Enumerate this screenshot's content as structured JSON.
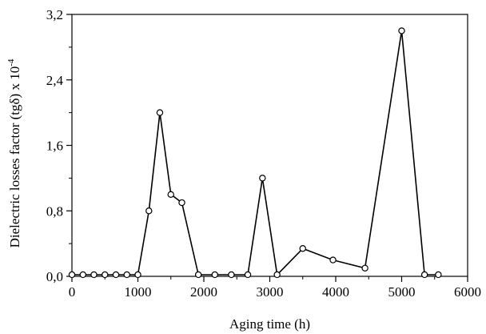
{
  "chart_data": {
    "type": "line",
    "title": "",
    "xlabel": "Aging time (h)",
    "ylabel": "Dielectric losses factor (tgδ) x 10",
    "ylabel_exponent": "-4",
    "xlim": [
      0,
      6000
    ],
    "ylim": [
      0,
      3.2
    ],
    "x_ticks": [
      0,
      1000,
      2000,
      3000,
      4000,
      5000,
      6000
    ],
    "x_tick_labels": [
      "0",
      "1000",
      "2000",
      "3000",
      "4000",
      "5000",
      "6000"
    ],
    "y_ticks": [
      0,
      0.8,
      1.6,
      2.4,
      3.2
    ],
    "y_tick_labels": [
      "0,0",
      "0,8",
      "1,6",
      "2,4",
      "3,2"
    ],
    "grid": false,
    "marker": "open-circle",
    "line_color": "#000000",
    "series": [
      {
        "x": [
          0,
          167,
          333,
          500,
          667,
          833,
          1000,
          1167,
          1333,
          1500,
          1667,
          1917,
          2167,
          2417,
          2667,
          2889,
          3111,
          3500,
          3958,
          4444,
          5000,
          5347,
          5556
        ],
        "values": [
          0.02,
          0.02,
          0.02,
          0.02,
          0.02,
          0.02,
          0.02,
          0.8,
          2.0,
          1.0,
          0.9,
          0.02,
          0.02,
          0.02,
          0.02,
          1.2,
          0.02,
          0.34,
          0.2,
          0.1,
          3.0,
          0.02,
          0.02
        ]
      }
    ]
  }
}
